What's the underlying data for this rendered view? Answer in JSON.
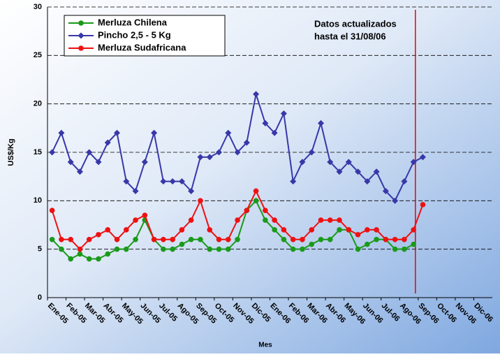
{
  "chart_data": {
    "type": "line",
    "ylabel": "US$/Kg",
    "xlabel": "Mes",
    "annotation": [
      "Datos actualizados",
      "hasta el 31/08/06"
    ],
    "categories": [
      "Ene-05",
      null,
      "Feb-05",
      null,
      "Mar-05",
      null,
      "Abr-05",
      null,
      "May-05",
      null,
      "Jun-05",
      null,
      "Jul-05",
      null,
      "Ago-05",
      null,
      "Sep-05",
      null,
      "Oct-05",
      null,
      "Nov-05",
      null,
      "Dic-05",
      null,
      "Ene-06",
      null,
      "Feb-06",
      null,
      "Mar-06",
      null,
      "Abr-06",
      null,
      "May-06",
      null,
      "Jun-06",
      null,
      "Jul-06",
      null,
      "Ago-06",
      null,
      "Sep-06",
      null,
      "Oct-06",
      null,
      "Nov-06",
      null,
      "Dic-06",
      null
    ],
    "series": [
      {
        "name": "Merluza Chilena",
        "color": "#1a9a1a",
        "marker": "circle",
        "values": [
          6,
          5,
          4,
          4.5,
          4,
          4,
          4.5,
          5,
          5,
          6,
          8,
          6,
          5,
          5,
          5.5,
          6,
          6,
          5,
          5,
          5,
          6,
          9,
          10,
          8,
          7,
          6,
          5,
          5,
          5.5,
          6,
          6,
          7,
          7,
          5,
          5.5,
          6,
          6,
          5,
          5,
          5.5,
          null,
          null,
          null,
          null,
          null,
          null,
          null,
          null
        ]
      },
      {
        "name": "Pincho 2,5 - 5 Kg",
        "color": "#3838a8",
        "marker": "diamond",
        "values": [
          15,
          17,
          14,
          13,
          15,
          14,
          16,
          17,
          12,
          11,
          14,
          17,
          12,
          12,
          12,
          11,
          14.5,
          14.5,
          15,
          17,
          15,
          16,
          21,
          18,
          17,
          19,
          12,
          14,
          15,
          18,
          14,
          13,
          14,
          13,
          12,
          13,
          11,
          10,
          12,
          14,
          14.5,
          null,
          null,
          null,
          null,
          null,
          null,
          null
        ]
      },
      {
        "name": "Merluza Sudafricana",
        "color": "#ee1111",
        "marker": "circle",
        "values": [
          9,
          6,
          6,
          5,
          6,
          6.5,
          7,
          6,
          7,
          8,
          8.5,
          6,
          6,
          6,
          7,
          8,
          10,
          7,
          6,
          6,
          8,
          9,
          11,
          9,
          8,
          7,
          6,
          6,
          7,
          8,
          8,
          8,
          7,
          6.5,
          7,
          7,
          6,
          6,
          6,
          7,
          9.6,
          null,
          null,
          null,
          null,
          null,
          null,
          null
        ]
      }
    ],
    "ylim": [
      0,
      30
    ],
    "yticks": [
      0,
      5,
      10,
      15,
      20,
      25,
      30
    ],
    "grid": true,
    "legend": "top-left"
  }
}
